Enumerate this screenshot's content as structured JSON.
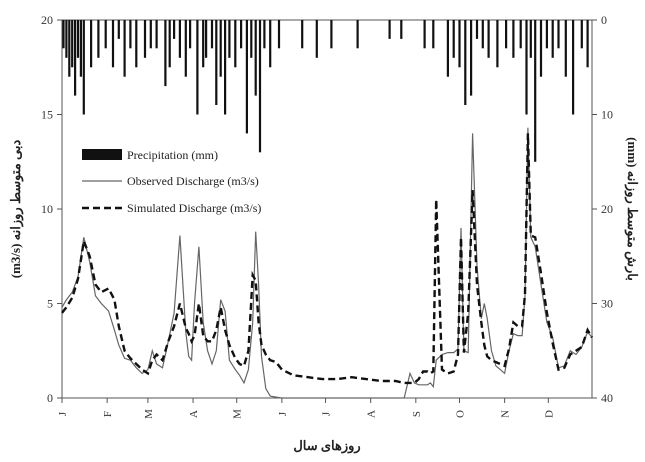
{
  "chart_data": {
    "type": "line",
    "xlabel": "روزهای سال",
    "ylabel_left": "دبی متوسط روزانه (m3/s)",
    "ylabel_right": "بارش متوسط روزانه (mm)",
    "ylim_left": [
      0,
      20
    ],
    "ylim_right": [
      40,
      0
    ],
    "yticks_left": [
      "0",
      "5",
      "10",
      "15",
      "20"
    ],
    "yticks_right": [
      "0",
      "10",
      "20",
      "30",
      "40"
    ],
    "xlim": [
      1,
      365
    ],
    "months": [
      {
        "label": "J",
        "day": 1
      },
      {
        "label": "F",
        "day": 32
      },
      {
        "label": "M",
        "day": 60
      },
      {
        "label": "A",
        "day": 91
      },
      {
        "label": "M",
        "day": 121
      },
      {
        "label": "J",
        "day": 152
      },
      {
        "label": "J",
        "day": 182
      },
      {
        "label": "A",
        "day": 213
      },
      {
        "label": "S",
        "day": 244
      },
      {
        "label": "O",
        "day": 274
      },
      {
        "label": "N",
        "day": 305
      },
      {
        "label": "D",
        "day": 335
      }
    ],
    "legend": {
      "position": "center-left",
      "entries": [
        {
          "key": "precip",
          "label": "Precipitation (mm)"
        },
        {
          "key": "observed",
          "label": "Observed Discharge (m3/s)"
        },
        {
          "key": "simulated",
          "label": "Simulated Discharge (m3/s)"
        }
      ]
    },
    "grid": false,
    "series": [
      {
        "key": "observed",
        "style": "solid",
        "x": [
          1,
          4,
          8,
          12,
          16,
          20,
          24,
          28,
          33,
          37,
          40,
          44,
          48,
          52,
          56,
          60,
          63,
          66,
          70,
          74,
          78,
          82,
          86,
          88,
          90,
          92,
          95,
          98,
          101,
          104,
          107,
          110,
          113,
          116,
          120,
          123,
          126,
          129,
          132,
          134,
          136,
          138,
          141,
          144,
          148,
          152,
          160,
          170,
          180,
          190,
          200,
          210,
          220,
          230,
          236,
          240,
          243,
          246,
          249,
          252,
          254,
          256,
          258,
          262,
          266,
          270,
          273,
          275,
          277,
          280,
          283,
          286,
          289,
          291,
          293,
          296,
          299,
          302,
          305,
          308,
          311,
          314,
          317,
          319,
          321,
          323,
          326,
          330,
          334,
          338,
          342,
          346,
          350,
          354,
          358,
          362,
          365
        ],
        "y": [
          4.8,
          5.2,
          5.6,
          6.4,
          8.5,
          7.2,
          5.4,
          5.0,
          4.6,
          3.6,
          2.8,
          2.1,
          2.0,
          1.6,
          1.3,
          1.5,
          2.5,
          1.8,
          1.6,
          3.0,
          4.5,
          8.6,
          3.5,
          2.2,
          2.0,
          5.0,
          8.0,
          4.0,
          2.5,
          1.8,
          2.5,
          5.2,
          4.6,
          2.0,
          1.5,
          1.2,
          0.8,
          1.5,
          4.0,
          8.8,
          6.0,
          2.2,
          0.5,
          0.1,
          0.05,
          0.0,
          0.0,
          0.0,
          0.0,
          0.0,
          0.0,
          0.0,
          0.0,
          0.0,
          0.0,
          1.3,
          0.8,
          0.7,
          0.7,
          0.7,
          0.8,
          0.6,
          2.0,
          2.3,
          2.4,
          2.4,
          2.6,
          9.0,
          2.5,
          2.4,
          14.0,
          7.0,
          4.2,
          5.0,
          4.2,
          2.5,
          1.7,
          1.5,
          1.3,
          2.5,
          3.4,
          3.3,
          3.3,
          5.4,
          14.3,
          8.5,
          8.0,
          6.0,
          4.0,
          3.2,
          1.6,
          1.7,
          2.5,
          2.3,
          2.7,
          3.5,
          3.2
        ]
      },
      {
        "key": "simulated",
        "style": "dashed",
        "x": [
          1,
          4,
          8,
          12,
          16,
          20,
          24,
          28,
          33,
          37,
          40,
          44,
          48,
          52,
          56,
          60,
          63,
          66,
          70,
          74,
          78,
          82,
          86,
          88,
          90,
          92,
          95,
          98,
          101,
          104,
          107,
          110,
          113,
          116,
          120,
          123,
          126,
          129,
          132,
          134,
          136,
          138,
          141,
          144,
          148,
          152,
          160,
          170,
          180,
          190,
          200,
          210,
          220,
          230,
          236,
          240,
          243,
          246,
          249,
          252,
          254,
          256,
          258,
          262,
          266,
          270,
          273,
          275,
          277,
          280,
          283,
          286,
          289,
          291,
          293,
          296,
          299,
          302,
          305,
          308,
          311,
          314,
          317,
          319,
          321,
          323,
          326,
          330,
          334,
          338,
          342,
          346,
          350,
          354,
          358,
          362,
          365
        ],
        "y": [
          4.5,
          4.8,
          5.3,
          6.3,
          8.3,
          7.5,
          6.0,
          5.6,
          5.8,
          5.2,
          3.8,
          2.5,
          2.1,
          1.8,
          1.5,
          1.3,
          2.0,
          2.3,
          2.0,
          3.0,
          3.8,
          5.0,
          3.7,
          3.4,
          3.0,
          3.3,
          5.0,
          3.3,
          3.0,
          3.0,
          3.6,
          4.8,
          3.6,
          2.8,
          2.1,
          1.8,
          1.7,
          2.5,
          6.5,
          6.2,
          4.0,
          2.8,
          2.3,
          2.0,
          1.9,
          1.5,
          1.2,
          1.1,
          1.0,
          1.0,
          1.1,
          1.0,
          0.9,
          0.9,
          0.8,
          0.8,
          0.8,
          1.0,
          1.4,
          1.4,
          1.3,
          1.4,
          10.5,
          1.5,
          1.3,
          1.4,
          2.3,
          8.5,
          2.4,
          4.5,
          11.0,
          6.0,
          4.0,
          2.8,
          2.2,
          2.0,
          1.9,
          1.8,
          1.7,
          2.6,
          4.0,
          3.8,
          3.8,
          5.5,
          14.0,
          8.6,
          8.5,
          6.6,
          4.5,
          2.9,
          1.5,
          1.6,
          2.3,
          2.5,
          2.7,
          3.6,
          3.2
        ]
      },
      {
        "key": "precip",
        "style": "bar",
        "x": [
          2,
          4,
          6,
          8,
          10,
          12,
          14,
          16,
          21,
          26,
          31,
          36,
          40,
          44,
          48,
          52,
          58,
          62,
          66,
          72,
          75,
          78,
          82,
          86,
          89,
          94,
          98,
          100,
          104,
          107,
          110,
          113,
          116,
          120,
          124,
          128,
          131,
          134,
          137,
          140,
          144,
          150,
          166,
          176,
          186,
          204,
          226,
          234,
          250,
          256,
          266,
          270,
          274,
          278,
          282,
          286,
          290,
          294,
          300,
          306,
          311,
          316,
          320,
          323,
          326,
          330,
          334,
          338,
          342,
          347,
          352,
          358,
          362
        ],
        "y": [
          3,
          4,
          6,
          5,
          8,
          4,
          6,
          10,
          5,
          4,
          3,
          5,
          2,
          6,
          3,
          5,
          4,
          3,
          3,
          7,
          5,
          2,
          4,
          6,
          3,
          10,
          5,
          4,
          3,
          9,
          6,
          10,
          4,
          5,
          3,
          12,
          4,
          8,
          14,
          3,
          5,
          3,
          3,
          4,
          3,
          3,
          2,
          2,
          3,
          3,
          6,
          4,
          5,
          9,
          8,
          2,
          3,
          4,
          5,
          3,
          4,
          3,
          10,
          4,
          15,
          6,
          3,
          4,
          3,
          6,
          10,
          3,
          5
        ]
      }
    ]
  }
}
